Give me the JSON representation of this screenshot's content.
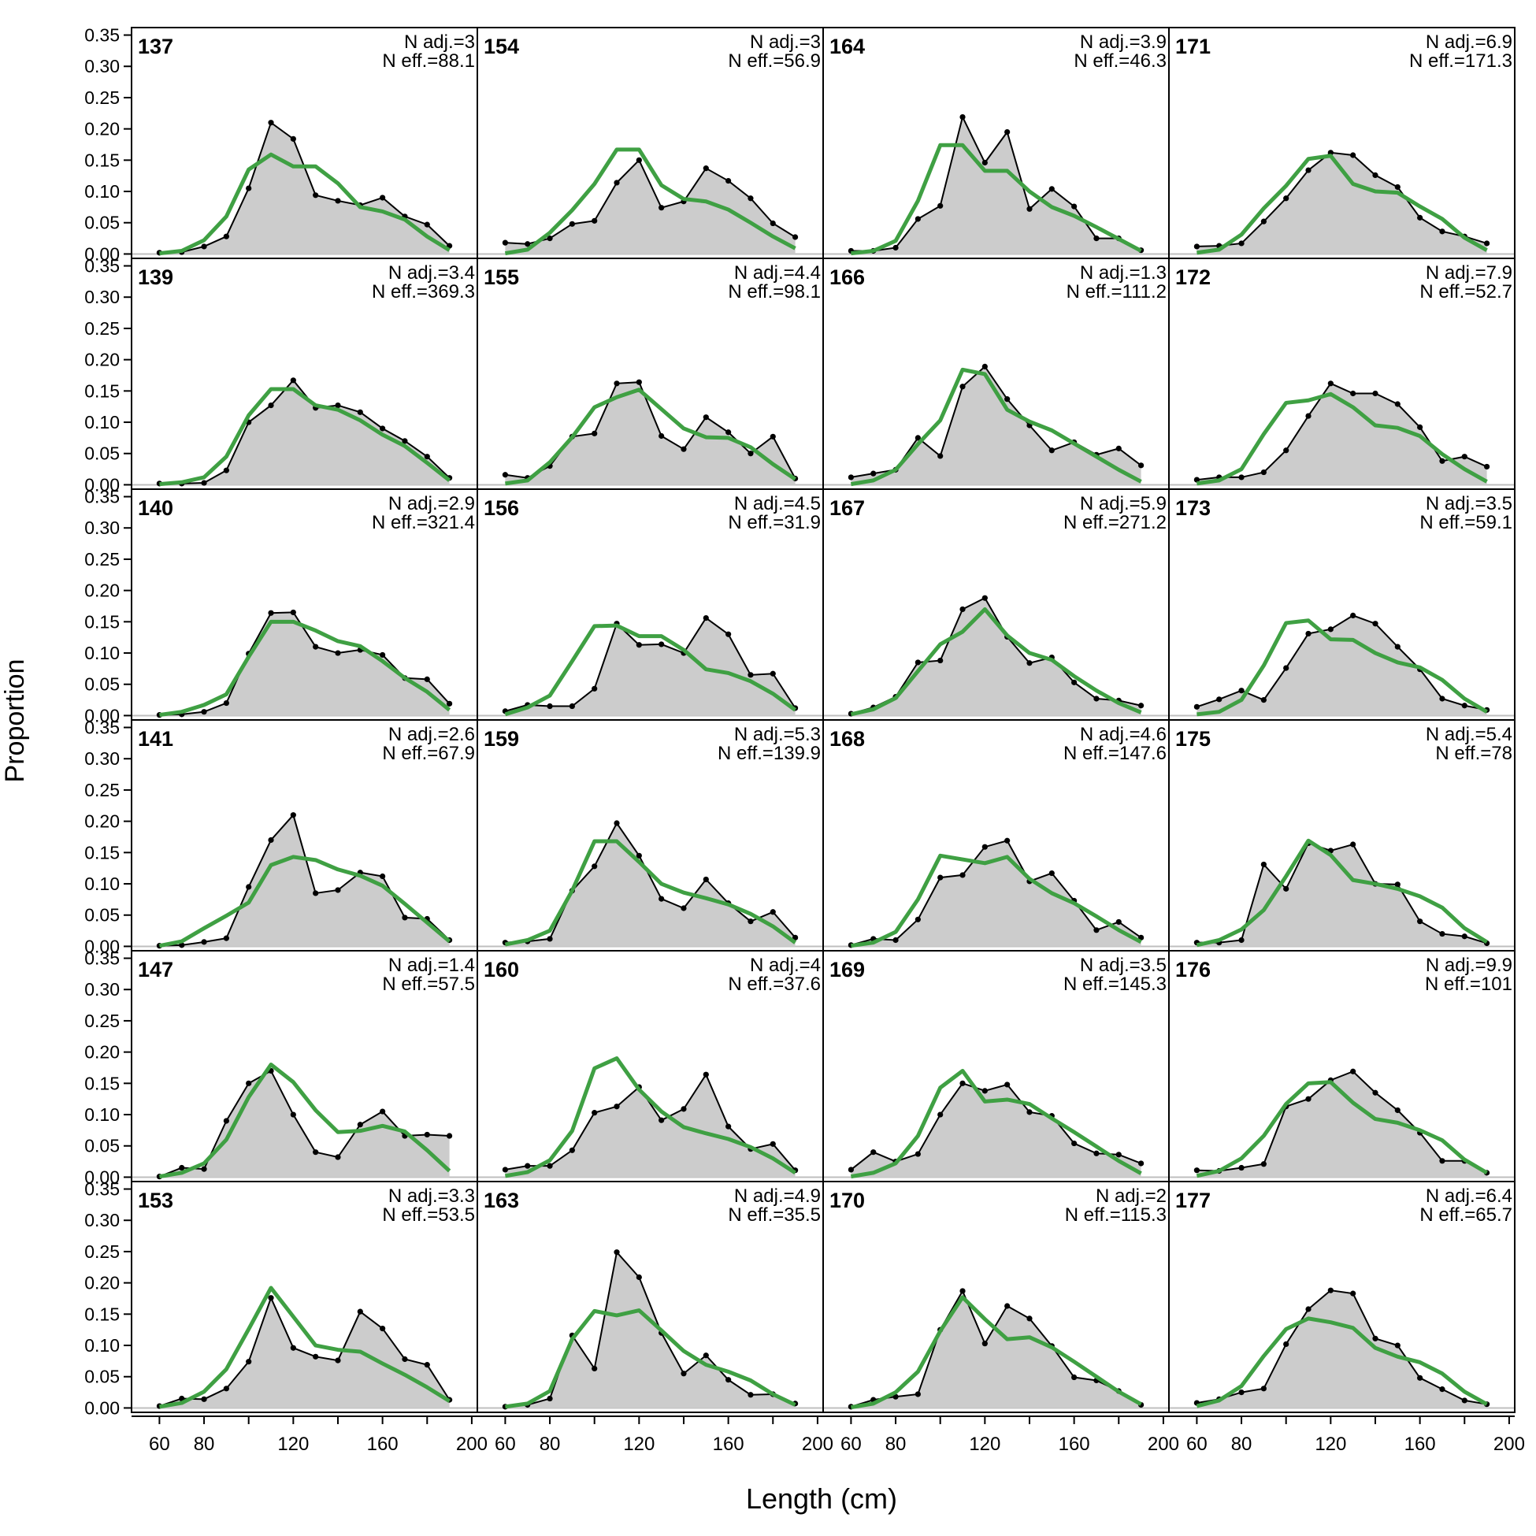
{
  "chart_data": {
    "type": "area",
    "xlabel": "Length (cm)",
    "ylabel": "Proportion",
    "xlim": [
      47.5,
      202.5
    ],
    "ylim": [
      0,
      0.36
    ],
    "x_ticks": [
      60,
      80,
      120,
      160,
      200
    ],
    "x_tick_labels": [
      "60",
      "80",
      "120",
      "160",
      "200"
    ],
    "y_ticks": [
      0,
      0.05,
      0.1,
      0.15,
      0.2,
      0.25,
      0.3,
      0.35
    ],
    "y_tick_labels": [
      "0.00",
      "0.05",
      "0.10",
      "0.15",
      "0.20",
      "0.25",
      "0.30",
      "0.35"
    ],
    "grid": false,
    "colors": {
      "observed_fill": "#cccccc",
      "observed_line": "#000000",
      "expected_line": "#3fa043",
      "frame": "#000000",
      "zero_line": "#bfbfbf"
    },
    "layout": {
      "rows": 6,
      "cols": 4,
      "order": "column-major"
    },
    "x": [
      60,
      70,
      80,
      90,
      100,
      110,
      120,
      130,
      140,
      150,
      160,
      170,
      180,
      190
    ],
    "panels": [
      {
        "label": "137",
        "n_adj": "N adj.=3",
        "n_eff": "N eff.=88.1",
        "observed": [
          0.002,
          0.003,
          0.012,
          0.028,
          0.105,
          0.21,
          0.184,
          0.094,
          0.085,
          0.078,
          0.09,
          0.06,
          0.047,
          0.013
        ],
        "expected": [
          0.001,
          0.005,
          0.022,
          0.06,
          0.135,
          0.159,
          0.14,
          0.14,
          0.113,
          0.075,
          0.068,
          0.055,
          0.028,
          0.006
        ]
      },
      {
        "label": "139",
        "n_adj": "N adj.=3.4",
        "n_eff": "N eff.=369.3",
        "observed": [
          0.002,
          0.002,
          0.003,
          0.023,
          0.1,
          0.127,
          0.167,
          0.123,
          0.127,
          0.116,
          0.09,
          0.07,
          0.045,
          0.011
        ],
        "expected": [
          0.001,
          0.004,
          0.012,
          0.045,
          0.111,
          0.153,
          0.153,
          0.127,
          0.12,
          0.103,
          0.08,
          0.062,
          0.035,
          0.007
        ]
      },
      {
        "label": "140",
        "n_adj": "N adj.=2.9",
        "n_eff": "N eff.=321.4",
        "observed": [
          0.001,
          0.002,
          0.006,
          0.02,
          0.099,
          0.164,
          0.165,
          0.11,
          0.1,
          0.105,
          0.097,
          0.06,
          0.058,
          0.019
        ],
        "expected": [
          0.001,
          0.006,
          0.017,
          0.034,
          0.094,
          0.15,
          0.15,
          0.136,
          0.119,
          0.111,
          0.087,
          0.06,
          0.038,
          0.009
        ]
      },
      {
        "label": "141",
        "n_adj": "N adj.=2.6",
        "n_eff": "N eff.=67.9",
        "observed": [
          0.001,
          0.002,
          0.007,
          0.013,
          0.095,
          0.17,
          0.21,
          0.085,
          0.09,
          0.118,
          0.112,
          0.046,
          0.044,
          0.01
        ],
        "expected": [
          0.001,
          0.008,
          0.029,
          0.049,
          0.07,
          0.13,
          0.143,
          0.138,
          0.123,
          0.113,
          0.097,
          0.068,
          0.038,
          0.008
        ]
      },
      {
        "label": "147",
        "n_adj": "N adj.=1.4",
        "n_eff": "N eff.=57.5",
        "observed": [
          0.001,
          0.015,
          0.013,
          0.09,
          0.15,
          0.17,
          0.1,
          0.04,
          0.032,
          0.084,
          0.105,
          0.066,
          0.068,
          0.066
        ],
        "expected": [
          0.001,
          0.007,
          0.022,
          0.06,
          0.128,
          0.18,
          0.152,
          0.107,
          0.072,
          0.074,
          0.082,
          0.073,
          0.043,
          0.01
        ]
      },
      {
        "label": "153",
        "n_adj": "N adj.=3.3",
        "n_eff": "N eff.=53.5",
        "observed": [
          0.003,
          0.015,
          0.014,
          0.031,
          0.074,
          0.176,
          0.096,
          0.082,
          0.076,
          0.154,
          0.127,
          0.078,
          0.069,
          0.013
        ],
        "expected": [
          0.002,
          0.008,
          0.026,
          0.062,
          0.126,
          0.192,
          0.146,
          0.1,
          0.093,
          0.09,
          0.071,
          0.053,
          0.033,
          0.011
        ]
      },
      {
        "label": "154",
        "n_adj": "N adj.=3",
        "n_eff": "N eff.=56.9",
        "observed": [
          0.018,
          0.016,
          0.025,
          0.048,
          0.053,
          0.114,
          0.15,
          0.074,
          0.084,
          0.137,
          0.117,
          0.089,
          0.049,
          0.027
        ],
        "expected": [
          0.001,
          0.007,
          0.034,
          0.07,
          0.112,
          0.167,
          0.167,
          0.11,
          0.088,
          0.084,
          0.071,
          0.05,
          0.028,
          0.009
        ]
      },
      {
        "label": "155",
        "n_adj": "N adj.=4.4",
        "n_eff": "N eff.=98.1",
        "observed": [
          0.016,
          0.011,
          0.03,
          0.077,
          0.082,
          0.162,
          0.164,
          0.078,
          0.057,
          0.108,
          0.084,
          0.05,
          0.077,
          0.01
        ],
        "expected": [
          0.002,
          0.007,
          0.036,
          0.076,
          0.124,
          0.14,
          0.152,
          0.121,
          0.09,
          0.076,
          0.075,
          0.06,
          0.033,
          0.009
        ]
      },
      {
        "label": "156",
        "n_adj": "N adj.=4.5",
        "n_eff": "N eff.=31.9",
        "observed": [
          0.007,
          0.017,
          0.015,
          0.015,
          0.043,
          0.147,
          0.113,
          0.114,
          0.1,
          0.156,
          0.13,
          0.065,
          0.067,
          0.012
        ],
        "expected": [
          0.002,
          0.013,
          0.032,
          0.087,
          0.143,
          0.144,
          0.127,
          0.127,
          0.105,
          0.074,
          0.068,
          0.055,
          0.035,
          0.009
        ]
      },
      {
        "label": "159",
        "n_adj": "N adj.=5.3",
        "n_eff": "N eff.=139.9",
        "observed": [
          0.006,
          0.008,
          0.012,
          0.089,
          0.128,
          0.197,
          0.145,
          0.076,
          0.061,
          0.107,
          0.069,
          0.04,
          0.055,
          0.014
        ],
        "expected": [
          0.003,
          0.01,
          0.025,
          0.089,
          0.168,
          0.168,
          0.135,
          0.1,
          0.086,
          0.077,
          0.067,
          0.052,
          0.032,
          0.006
        ]
      },
      {
        "label": "160",
        "n_adj": "N adj.=4",
        "n_eff": "N eff.=37.6",
        "observed": [
          0.012,
          0.018,
          0.018,
          0.043,
          0.103,
          0.113,
          0.144,
          0.091,
          0.109,
          0.164,
          0.081,
          0.045,
          0.053,
          0.011
        ],
        "expected": [
          0.002,
          0.008,
          0.027,
          0.074,
          0.174,
          0.19,
          0.14,
          0.105,
          0.08,
          0.07,
          0.061,
          0.048,
          0.03,
          0.007
        ]
      },
      {
        "label": "163",
        "n_adj": "N adj.=4.9",
        "n_eff": "N eff.=35.5",
        "observed": [
          0.002,
          0.005,
          0.015,
          0.116,
          0.063,
          0.249,
          0.209,
          0.12,
          0.055,
          0.084,
          0.045,
          0.021,
          0.022,
          0.007
        ],
        "expected": [
          0.002,
          0.007,
          0.027,
          0.11,
          0.155,
          0.148,
          0.156,
          0.124,
          0.091,
          0.069,
          0.058,
          0.044,
          0.022,
          0.005
        ]
      },
      {
        "label": "164",
        "n_adj": "N adj.=3.9",
        "n_eff": "N eff.=46.3",
        "observed": [
          0.005,
          0.005,
          0.01,
          0.056,
          0.077,
          0.219,
          0.146,
          0.195,
          0.072,
          0.104,
          0.076,
          0.025,
          0.025,
          0.006
        ],
        "expected": [
          0.001,
          0.005,
          0.021,
          0.085,
          0.174,
          0.174,
          0.133,
          0.133,
          0.1,
          0.075,
          0.061,
          0.043,
          0.024,
          0.005
        ]
      },
      {
        "label": "166",
        "n_adj": "N adj.=1.3",
        "n_eff": "N eff.=111.2",
        "observed": [
          0.012,
          0.018,
          0.024,
          0.075,
          0.046,
          0.157,
          0.189,
          0.137,
          0.095,
          0.055,
          0.068,
          0.048,
          0.058,
          0.031
        ],
        "expected": [
          0.001,
          0.007,
          0.024,
          0.065,
          0.103,
          0.184,
          0.177,
          0.12,
          0.101,
          0.087,
          0.066,
          0.045,
          0.024,
          0.005
        ]
      },
      {
        "label": "167",
        "n_adj": "N adj.=5.9",
        "n_eff": "N eff.=271.2",
        "observed": [
          0.003,
          0.013,
          0.03,
          0.085,
          0.088,
          0.17,
          0.188,
          0.126,
          0.084,
          0.093,
          0.053,
          0.027,
          0.024,
          0.016
        ],
        "expected": [
          0.002,
          0.01,
          0.028,
          0.071,
          0.114,
          0.134,
          0.17,
          0.128,
          0.1,
          0.089,
          0.063,
          0.04,
          0.02,
          0.005
        ]
      },
      {
        "label": "168",
        "n_adj": "N adj.=4.6",
        "n_eff": "N eff.=147.6",
        "observed": [
          0.002,
          0.012,
          0.01,
          0.043,
          0.11,
          0.114,
          0.159,
          0.169,
          0.104,
          0.117,
          0.073,
          0.026,
          0.039,
          0.014
        ],
        "expected": [
          0.001,
          0.006,
          0.023,
          0.075,
          0.145,
          0.139,
          0.133,
          0.143,
          0.108,
          0.085,
          0.069,
          0.048,
          0.026,
          0.007
        ]
      },
      {
        "label": "169",
        "n_adj": "N adj.=3.5",
        "n_eff": "N eff.=145.3",
        "observed": [
          0.012,
          0.04,
          0.025,
          0.037,
          0.1,
          0.15,
          0.138,
          0.148,
          0.104,
          0.098,
          0.054,
          0.038,
          0.036,
          0.022
        ],
        "expected": [
          0.001,
          0.007,
          0.022,
          0.066,
          0.143,
          0.17,
          0.121,
          0.124,
          0.117,
          0.094,
          0.072,
          0.049,
          0.026,
          0.006
        ]
      },
      {
        "label": "170",
        "n_adj": "N adj.=2",
        "n_eff": "N eff.=115.3",
        "observed": [
          0.002,
          0.013,
          0.018,
          0.022,
          0.125,
          0.187,
          0.103,
          0.163,
          0.143,
          0.099,
          0.049,
          0.044,
          0.027,
          0.005
        ],
        "expected": [
          0.001,
          0.007,
          0.025,
          0.058,
          0.123,
          0.177,
          0.142,
          0.11,
          0.113,
          0.097,
          0.074,
          0.05,
          0.026,
          0.006
        ]
      },
      {
        "label": "171",
        "n_adj": "N adj.=6.9",
        "n_eff": "N eff.=171.3",
        "observed": [
          0.012,
          0.013,
          0.017,
          0.052,
          0.089,
          0.134,
          0.162,
          0.158,
          0.126,
          0.107,
          0.058,
          0.036,
          0.028,
          0.017
        ],
        "expected": [
          0.002,
          0.007,
          0.031,
          0.073,
          0.109,
          0.152,
          0.157,
          0.112,
          0.1,
          0.098,
          0.076,
          0.056,
          0.026,
          0.006
        ]
      },
      {
        "label": "172",
        "n_adj": "N adj.=7.9",
        "n_eff": "N eff.=52.7",
        "observed": [
          0.008,
          0.012,
          0.012,
          0.02,
          0.055,
          0.11,
          0.162,
          0.146,
          0.146,
          0.129,
          0.092,
          0.038,
          0.045,
          0.029
        ],
        "expected": [
          0.002,
          0.007,
          0.025,
          0.081,
          0.131,
          0.135,
          0.145,
          0.124,
          0.095,
          0.091,
          0.078,
          0.049,
          0.025,
          0.005
        ]
      },
      {
        "label": "173",
        "n_adj": "N adj.=3.5",
        "n_eff": "N eff.=59.1",
        "observed": [
          0.014,
          0.026,
          0.04,
          0.025,
          0.076,
          0.131,
          0.138,
          0.16,
          0.147,
          0.11,
          0.074,
          0.027,
          0.016,
          0.009
        ],
        "expected": [
          0.002,
          0.006,
          0.025,
          0.08,
          0.148,
          0.152,
          0.122,
          0.121,
          0.1,
          0.085,
          0.077,
          0.057,
          0.027,
          0.006
        ]
      },
      {
        "label": "175",
        "n_adj": "N adj.=5.4",
        "n_eff": "N eff.=78",
        "observed": [
          0.006,
          0.006,
          0.01,
          0.131,
          0.092,
          0.165,
          0.153,
          0.163,
          0.1,
          0.099,
          0.04,
          0.02,
          0.016,
          0.005
        ],
        "expected": [
          0.002,
          0.01,
          0.027,
          0.058,
          0.112,
          0.169,
          0.146,
          0.106,
          0.1,
          0.092,
          0.08,
          0.062,
          0.029,
          0.007
        ]
      },
      {
        "label": "176",
        "n_adj": "N adj.=9.9",
        "n_eff": "N eff.=101",
        "observed": [
          0.011,
          0.01,
          0.015,
          0.021,
          0.113,
          0.125,
          0.155,
          0.169,
          0.135,
          0.107,
          0.071,
          0.026,
          0.026,
          0.007
        ],
        "expected": [
          0.002,
          0.01,
          0.03,
          0.066,
          0.117,
          0.15,
          0.152,
          0.119,
          0.093,
          0.087,
          0.075,
          0.059,
          0.028,
          0.007
        ]
      },
      {
        "label": "177",
        "n_adj": "N adj.=6.4",
        "n_eff": "N eff.=65.7",
        "observed": [
          0.008,
          0.014,
          0.025,
          0.031,
          0.102,
          0.158,
          0.188,
          0.183,
          0.111,
          0.1,
          0.048,
          0.03,
          0.012,
          0.006
        ],
        "expected": [
          0.003,
          0.012,
          0.035,
          0.083,
          0.126,
          0.143,
          0.137,
          0.128,
          0.096,
          0.082,
          0.073,
          0.055,
          0.026,
          0.006
        ]
      }
    ]
  }
}
